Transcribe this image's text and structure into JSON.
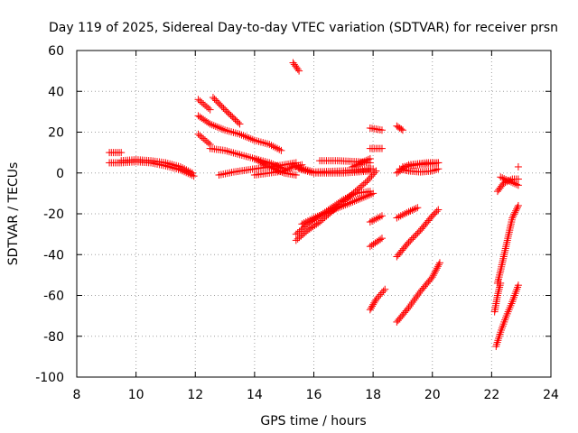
{
  "chart_data": {
    "type": "scatter",
    "title": "Day 119 of 2025, Sidereal Day-to-day VTEC variation (SDTVAR) for receiver prsn",
    "xlabel": "GPS time / hours",
    "ylabel": "SDTVAR / TECUs",
    "xlim": [
      8,
      24
    ],
    "ylim": [
      -100,
      60
    ],
    "xticks": [
      "8",
      "10",
      "12",
      "14",
      "16",
      "18",
      "20",
      "22",
      "24"
    ],
    "yticks": [
      "60",
      "40",
      "20",
      "0",
      "-20",
      "-40",
      "-60",
      "-80",
      "-100"
    ],
    "grid": true,
    "marker": "plus",
    "color": "#ff0000",
    "segments": [
      {
        "points": [
          [
            9.1,
            10
          ],
          [
            9.5,
            10
          ]
        ]
      },
      {
        "points": [
          [
            9.1,
            5
          ],
          [
            9.5,
            5
          ],
          [
            10.0,
            5.5
          ],
          [
            10.5,
            5
          ],
          [
            11.0,
            3.5
          ],
          [
            11.5,
            1.5
          ],
          [
            11.95,
            -1.5
          ]
        ]
      },
      {
        "points": [
          [
            9.5,
            6
          ],
          [
            10.0,
            6.5
          ],
          [
            10.5,
            6
          ],
          [
            11.0,
            5
          ],
          [
            11.5,
            3
          ],
          [
            11.9,
            0
          ]
        ]
      },
      {
        "points": [
          [
            12.1,
            36
          ],
          [
            12.5,
            31
          ]
        ]
      },
      {
        "points": [
          [
            12.6,
            37
          ],
          [
            13.0,
            31
          ],
          [
            13.5,
            24
          ]
        ]
      },
      {
        "points": [
          [
            12.1,
            28
          ],
          [
            12.5,
            24
          ],
          [
            13.0,
            21
          ],
          [
            13.5,
            19
          ],
          [
            14.0,
            16
          ],
          [
            14.5,
            14
          ],
          [
            14.9,
            11
          ]
        ]
      },
      {
        "points": [
          [
            12.1,
            19
          ],
          [
            12.5,
            14
          ]
        ]
      },
      {
        "points": [
          [
            12.5,
            12
          ],
          [
            13.0,
            11
          ],
          [
            13.5,
            9
          ],
          [
            14.0,
            7
          ],
          [
            14.5,
            5
          ],
          [
            15.0,
            2
          ]
        ]
      },
      {
        "points": [
          [
            12.8,
            -1
          ],
          [
            13.3,
            0.5
          ],
          [
            14.0,
            2
          ],
          [
            14.5,
            3
          ],
          [
            15.0,
            4
          ],
          [
            15.4,
            5
          ]
        ]
      },
      {
        "points": [
          [
            14.0,
            7
          ],
          [
            14.5,
            3
          ],
          [
            15.0,
            0
          ],
          [
            15.4,
            -1
          ]
        ]
      },
      {
        "points": [
          [
            14.0,
            -1
          ],
          [
            14.5,
            0
          ],
          [
            15.0,
            1
          ],
          [
            15.3,
            3
          ],
          [
            15.6,
            4
          ]
        ]
      },
      {
        "points": [
          [
            15.3,
            54
          ],
          [
            15.5,
            50
          ]
        ]
      },
      {
        "points": [
          [
            15.4,
            3
          ],
          [
            16.0,
            0.5
          ],
          [
            17.0,
            1
          ],
          [
            17.5,
            1.5
          ],
          [
            18.0,
            2
          ]
        ]
      },
      {
        "points": [
          [
            15.5,
            2
          ],
          [
            16.0,
            0
          ],
          [
            17.0,
            0
          ],
          [
            17.9,
            1
          ]
        ]
      },
      {
        "points": [
          [
            16.2,
            6
          ],
          [
            16.8,
            6
          ],
          [
            17.5,
            5.5
          ],
          [
            17.9,
            5
          ]
        ]
      },
      {
        "points": [
          [
            17.3,
            3
          ],
          [
            17.6,
            5
          ],
          [
            17.9,
            7
          ]
        ]
      },
      {
        "points": [
          [
            15.4,
            -33
          ],
          [
            15.8,
            -28
          ],
          [
            16.2,
            -24
          ],
          [
            16.6,
            -19
          ],
          [
            17.0,
            -14
          ],
          [
            17.4,
            -9
          ],
          [
            17.8,
            -4
          ],
          [
            18.1,
            1
          ]
        ]
      },
      {
        "points": [
          [
            15.4,
            -30
          ],
          [
            15.8,
            -25
          ],
          [
            16.2,
            -21
          ],
          [
            16.6,
            -17
          ],
          [
            17.0,
            -13
          ],
          [
            17.4,
            -10
          ],
          [
            17.9,
            -9
          ]
        ]
      },
      {
        "points": [
          [
            15.6,
            -25
          ],
          [
            16.0,
            -22
          ],
          [
            16.5,
            -19
          ],
          [
            17.0,
            -16
          ],
          [
            17.5,
            -13
          ],
          [
            18.0,
            -10
          ]
        ]
      },
      {
        "points": [
          [
            17.9,
            22
          ],
          [
            18.3,
            21
          ]
        ]
      },
      {
        "points": [
          [
            17.9,
            12
          ],
          [
            18.3,
            12
          ]
        ]
      },
      {
        "points": [
          [
            17.9,
            -24
          ],
          [
            18.3,
            -21
          ]
        ]
      },
      {
        "points": [
          [
            17.9,
            -36
          ],
          [
            18.3,
            -32
          ]
        ]
      },
      {
        "points": [
          [
            17.9,
            -67
          ],
          [
            18.1,
            -62
          ],
          [
            18.4,
            -57
          ]
        ]
      },
      {
        "points": [
          [
            18.8,
            23
          ],
          [
            19.0,
            21
          ]
        ]
      },
      {
        "points": [
          [
            18.8,
            0
          ],
          [
            19.2,
            4
          ],
          [
            19.8,
            5
          ],
          [
            20.2,
            5
          ]
        ]
      },
      {
        "points": [
          [
            18.9,
            2
          ],
          [
            19.2,
            1
          ],
          [
            19.6,
            0.5
          ],
          [
            20.0,
            1
          ],
          [
            20.2,
            2
          ]
        ]
      },
      {
        "points": [
          [
            19.0,
            3
          ],
          [
            19.5,
            4
          ],
          [
            20.0,
            4.5
          ],
          [
            20.2,
            5
          ]
        ]
      },
      {
        "points": [
          [
            18.8,
            -22
          ],
          [
            19.2,
            -19
          ],
          [
            19.5,
            -17
          ]
        ]
      },
      {
        "points": [
          [
            18.8,
            -41
          ],
          [
            19.2,
            -34
          ],
          [
            19.6,
            -28
          ],
          [
            20.0,
            -21
          ],
          [
            20.2,
            -18
          ]
        ]
      },
      {
        "points": [
          [
            18.8,
            -73
          ],
          [
            19.2,
            -66
          ],
          [
            19.6,
            -58
          ],
          [
            20.0,
            -51
          ],
          [
            20.25,
            -44
          ]
        ]
      },
      {
        "points": [
          [
            22.2,
            -54
          ],
          [
            22.3,
            -48
          ],
          [
            22.5,
            -35
          ],
          [
            22.7,
            -22
          ],
          [
            22.9,
            -16
          ]
        ]
      },
      {
        "points": [
          [
            22.15,
            -85
          ],
          [
            22.3,
            -78
          ],
          [
            22.5,
            -70
          ],
          [
            22.7,
            -63
          ],
          [
            22.9,
            -55
          ]
        ]
      },
      {
        "points": [
          [
            22.1,
            -68
          ],
          [
            22.2,
            -60
          ],
          [
            22.3,
            -54
          ]
        ]
      },
      {
        "points": [
          [
            22.3,
            -2
          ],
          [
            22.6,
            -4
          ],
          [
            22.9,
            -6
          ]
        ]
      },
      {
        "points": [
          [
            22.2,
            -9
          ],
          [
            22.4,
            -5
          ],
          [
            22.7,
            -3
          ],
          [
            22.9,
            -3
          ]
        ]
      },
      {
        "points": [
          [
            22.9,
            3
          ]
        ]
      }
    ]
  }
}
